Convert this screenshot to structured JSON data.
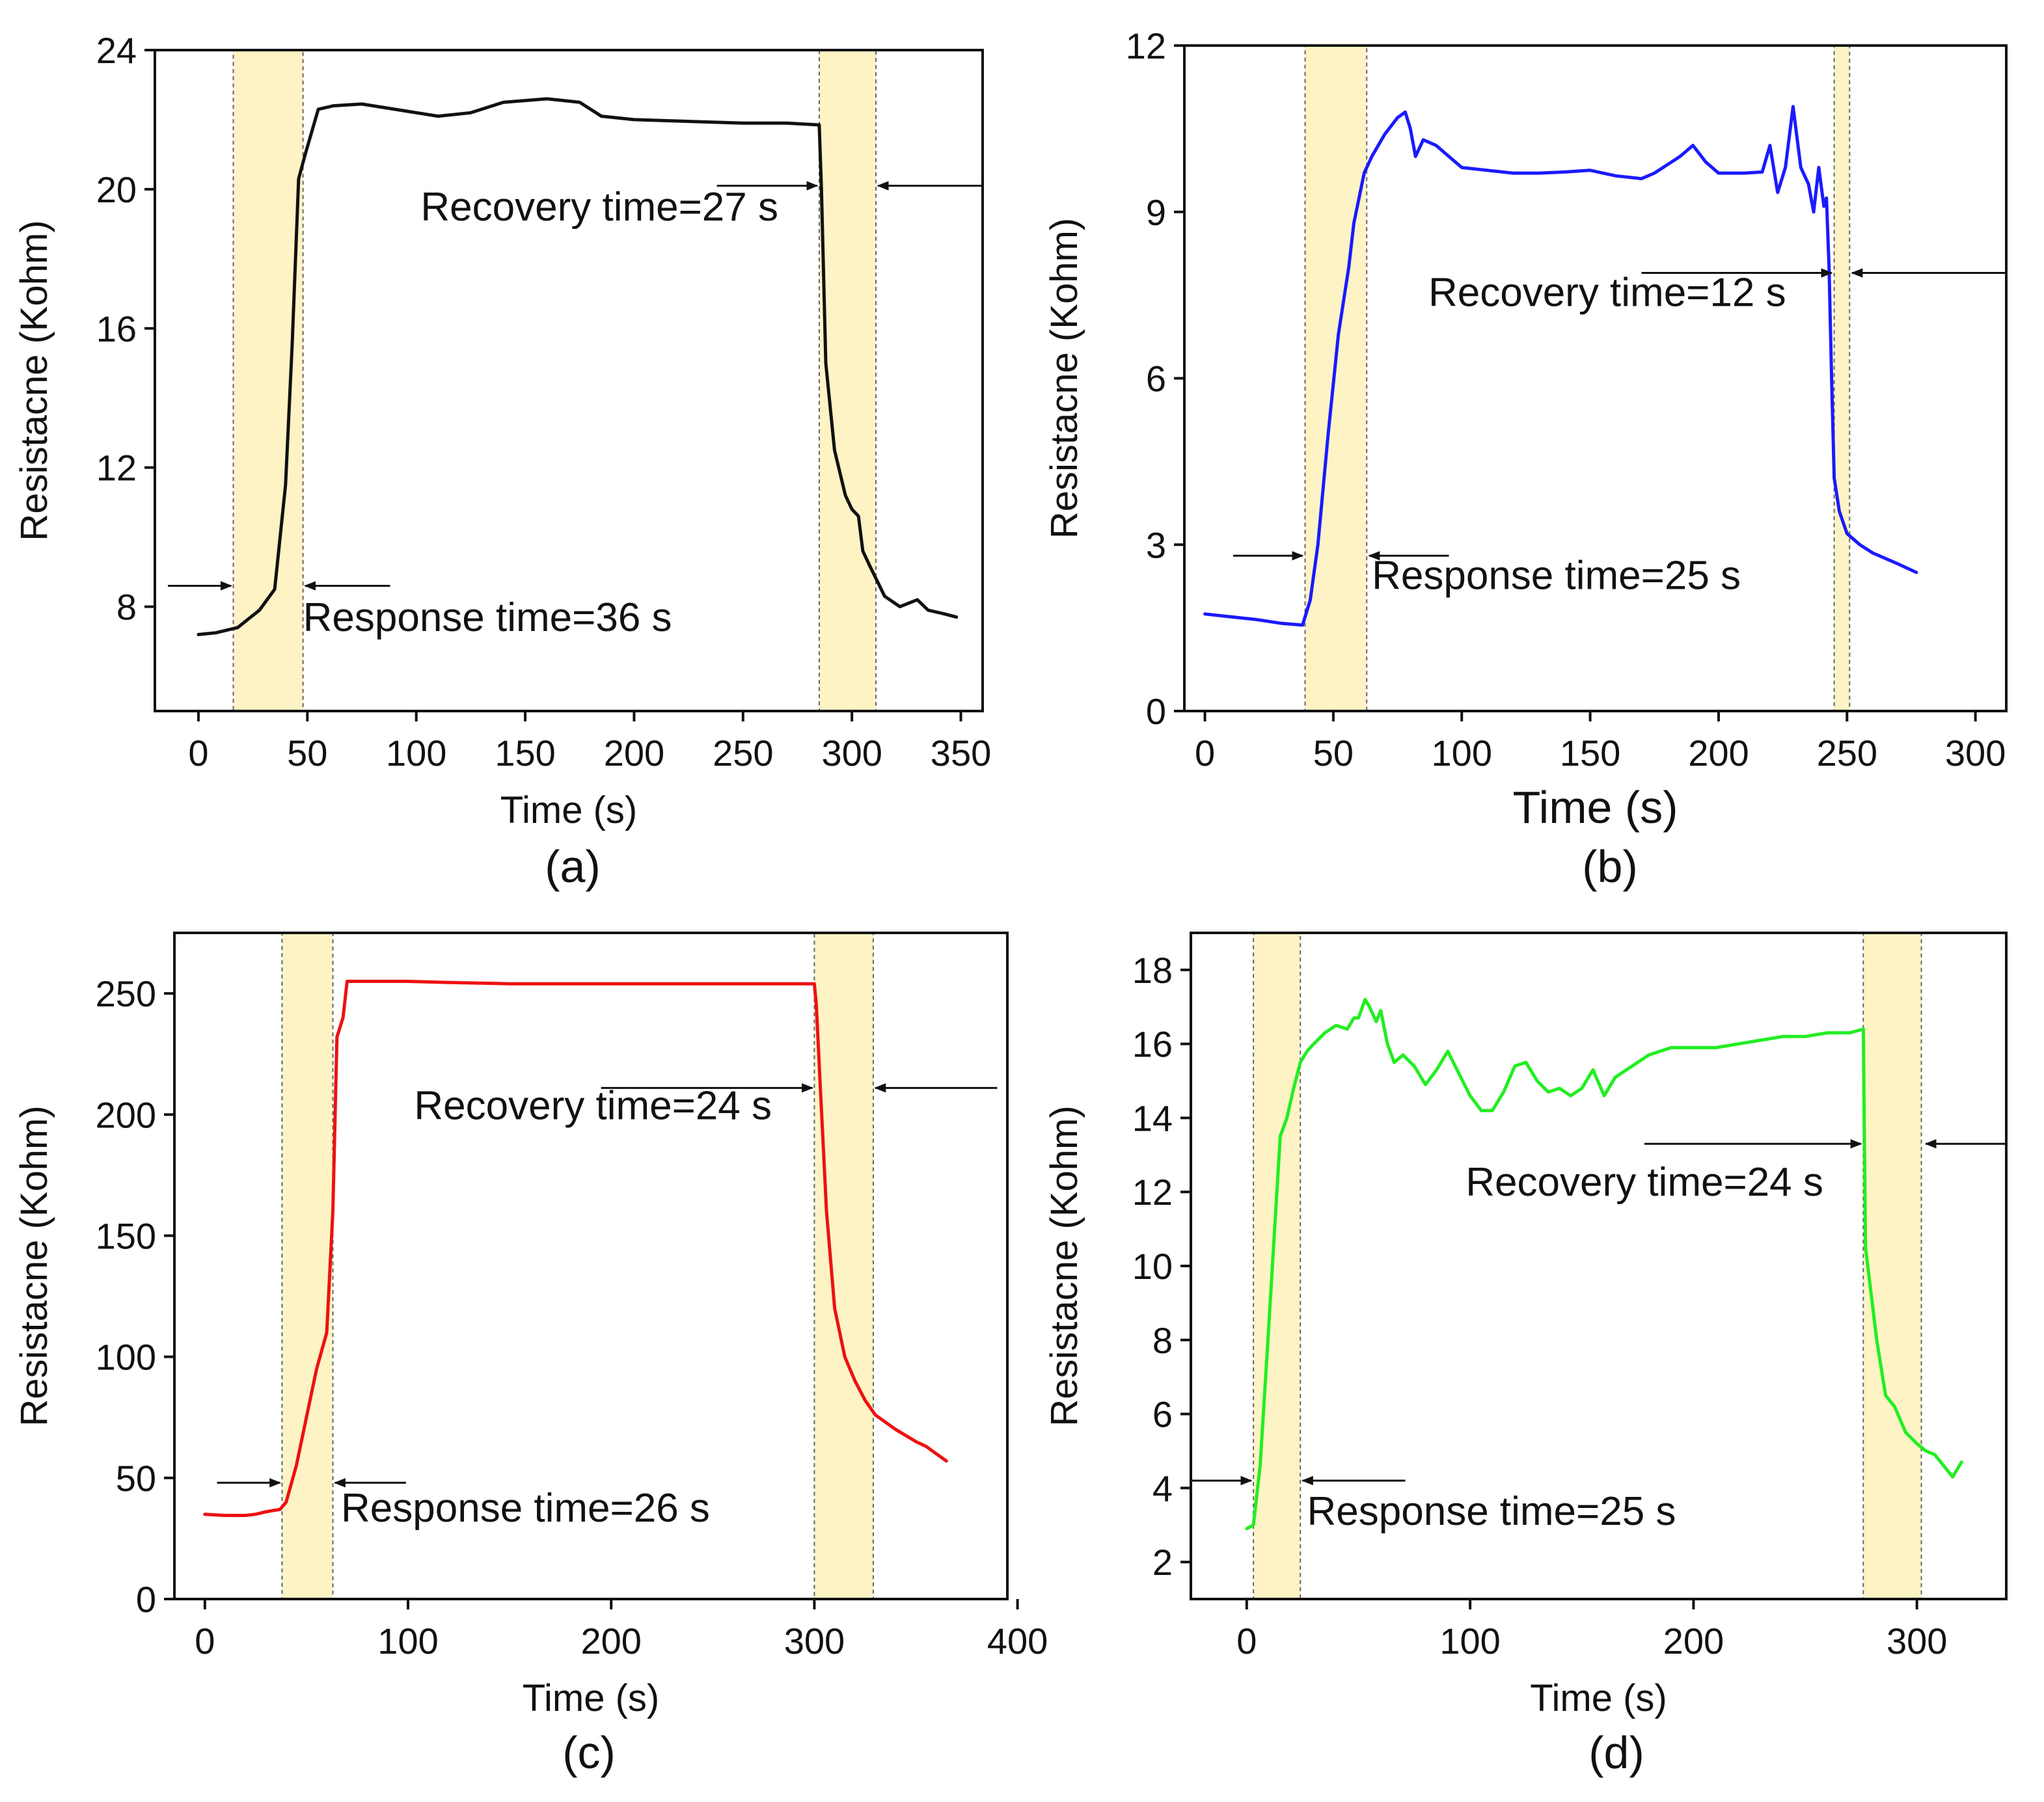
{
  "chart_data": [
    {
      "type": "line",
      "panel_label": "(a)",
      "xlabel": "Time (s)",
      "ylabel": "Resistacne (Kohm)",
      "xlim": [
        -20,
        360
      ],
      "ylim": [
        5,
        24
      ],
      "xticks": [
        0,
        50,
        100,
        150,
        200,
        250,
        300,
        350
      ],
      "yticks": [
        8,
        12,
        16,
        20,
        24
      ],
      "color": "#111111",
      "series": [
        {
          "name": "a",
          "x": [
            0,
            8,
            18,
            28,
            35,
            40,
            43,
            46,
            49,
            55,
            62,
            75,
            90,
            110,
            125,
            140,
            160,
            175,
            185,
            200,
            250,
            270,
            285,
            286,
            288,
            292,
            297,
            300,
            303,
            305,
            308,
            315,
            322,
            330,
            335,
            342,
            348
          ],
          "y": [
            7.2,
            7.25,
            7.4,
            7.9,
            8.5,
            11.5,
            15.5,
            20.3,
            21.0,
            22.3,
            22.4,
            22.45,
            22.3,
            22.1,
            22.2,
            22.5,
            22.6,
            22.5,
            22.1,
            22.0,
            21.9,
            21.9,
            21.85,
            20.0,
            15.0,
            12.5,
            11.2,
            10.8,
            10.6,
            9.6,
            9.2,
            8.3,
            8.0,
            8.2,
            7.9,
            7.8,
            7.7
          ]
        }
      ],
      "shaded_regions": [
        [
          16,
          48
        ],
        [
          285,
          311
        ]
      ],
      "annotations": [
        {
          "text": "Response time=36 s",
          "x": 48,
          "y": 7.3,
          "arrows": [
            {
              "from_x": -14,
              "to_x": 15,
              "y": 8.6
            },
            {
              "from_x": 88,
              "to_x": 49,
              "y": 8.6
            }
          ]
        },
        {
          "text": "Recovery time=27 s",
          "x": 102,
          "y": 19.1,
          "arrows": [
            {
              "from_x": 238,
              "to_x": 284,
              "y": 20.1
            },
            {
              "from_x": 360,
              "to_x": 312,
              "y": 20.1
            }
          ]
        }
      ]
    },
    {
      "type": "line",
      "panel_label": "(b)",
      "xlabel": "Time (s)",
      "ylabel": "Resistacne (Kohm)",
      "xlim": [
        -8,
        312
      ],
      "ylim": [
        0,
        12
      ],
      "xticks": [
        0,
        50,
        100,
        150,
        200,
        250,
        300
      ],
      "yticks": [
        0,
        3,
        6,
        9,
        12
      ],
      "color": "#1a1aff",
      "series": [
        {
          "name": "b",
          "x": [
            0,
            10,
            20,
            30,
            38,
            41,
            44,
            48,
            52,
            56,
            58,
            62,
            65,
            70,
            75,
            78,
            80,
            82,
            85,
            90,
            95,
            100,
            110,
            120,
            130,
            140,
            150,
            160,
            170,
            175,
            180,
            185,
            190,
            195,
            200,
            210,
            217,
            220,
            223,
            226,
            229,
            232,
            235,
            237,
            239,
            241,
            242,
            243,
            244,
            245,
            247,
            250,
            255,
            260,
            270,
            277
          ],
          "y": [
            1.75,
            1.7,
            1.65,
            1.58,
            1.55,
            2.0,
            3.0,
            5.0,
            6.8,
            8.0,
            8.8,
            9.7,
            10.0,
            10.4,
            10.7,
            10.8,
            10.5,
            10.0,
            10.3,
            10.2,
            10.0,
            9.8,
            9.75,
            9.7,
            9.7,
            9.72,
            9.75,
            9.65,
            9.6,
            9.7,
            9.85,
            10.0,
            10.2,
            9.9,
            9.7,
            9.7,
            9.72,
            10.2,
            9.35,
            9.8,
            10.9,
            9.8,
            9.5,
            9.0,
            9.8,
            9.1,
            9.25,
            8.0,
            6.0,
            4.2,
            3.6,
            3.2,
            3.0,
            2.85,
            2.65,
            2.5
          ]
        }
      ],
      "shaded_regions": [
        [
          39,
          63
        ],
        [
          245,
          251
        ]
      ],
      "annotations": [
        {
          "text": "Response time=25 s",
          "x": 65,
          "y": 2.2,
          "arrows": [
            {
              "from_x": 11,
              "to_x": 38,
              "y": 2.8
            },
            {
              "from_x": 95,
              "to_x": 64,
              "y": 2.8
            }
          ]
        },
        {
          "text": "Recovery time=12 s",
          "x": 87,
          "y": 7.3,
          "arrows": [
            {
              "from_x": 170,
              "to_x": 244,
              "y": 7.9
            },
            {
              "from_x": 312,
              "to_x": 252,
              "y": 7.9
            }
          ]
        }
      ]
    },
    {
      "type": "line",
      "panel_label": "(c)",
      "xlabel": "Time (s)",
      "ylabel": "Resistacne (Kohm)",
      "xlim": [
        -15,
        395
      ],
      "ylim": [
        0,
        275
      ],
      "xticks": [
        0,
        100,
        200,
        300,
        400
      ],
      "yticks": [
        0,
        50,
        100,
        150,
        200,
        250
      ],
      "color": "#ee1111",
      "series": [
        {
          "name": "c",
          "x": [
            0,
            10,
            20,
            25,
            30,
            37,
            40,
            45,
            50,
            55,
            60,
            63,
            65,
            68,
            70,
            80,
            100,
            120,
            150,
            200,
            250,
            280,
            300,
            301,
            303,
            306,
            310,
            315,
            320,
            325,
            330,
            340,
            350,
            355,
            360,
            365
          ],
          "y": [
            35,
            34.5,
            34.5,
            35,
            36,
            37,
            40,
            55,
            75,
            95,
            110,
            160,
            232,
            240,
            255,
            255,
            255,
            254.5,
            254,
            254,
            254,
            254,
            254,
            245,
            210,
            160,
            120,
            100,
            90,
            82,
            76,
            70,
            65,
            63,
            60,
            57
          ]
        }
      ],
      "shaded_regions": [
        [
          38,
          63
        ],
        [
          300,
          329
        ]
      ],
      "annotations": [
        {
          "text": "Response time=26 s",
          "x": 67,
          "y": 32,
          "arrows": [
            {
              "from_x": 6,
              "to_x": 37,
              "y": 48
            },
            {
              "from_x": 99,
              "to_x": 64,
              "y": 48
            }
          ]
        },
        {
          "text": "Recovery time=24 s",
          "x": 103,
          "y": 198,
          "arrows": [
            {
              "from_x": 195,
              "to_x": 299,
              "y": 211
            },
            {
              "from_x": 390,
              "to_x": 330,
              "y": 211
            }
          ]
        }
      ]
    },
    {
      "type": "line",
      "panel_label": "(d)",
      "xlabel": "Time (s)",
      "ylabel": "Resistacne (Kohm)",
      "xlim": [
        -25,
        340
      ],
      "ylim": [
        1,
        19
      ],
      "xticks": [
        0,
        100,
        200,
        300
      ],
      "yticks": [
        2,
        4,
        6,
        8,
        10,
        12,
        14,
        16,
        18
      ],
      "color": "#22ee22",
      "series": [
        {
          "name": "d",
          "x": [
            0,
            3,
            6,
            9,
            12,
            15,
            18,
            21,
            24,
            27,
            30,
            35,
            40,
            45,
            48,
            50,
            53,
            55,
            58,
            60,
            63,
            66,
            70,
            75,
            80,
            85,
            90,
            95,
            100,
            105,
            110,
            115,
            120,
            125,
            130,
            135,
            140,
            145,
            150,
            155,
            160,
            165,
            170,
            180,
            190,
            200,
            210,
            220,
            230,
            240,
            250,
            260,
            270,
            276,
            277,
            279,
            282,
            286,
            290,
            295,
            300,
            304,
            308,
            312,
            316,
            320
          ],
          "y": [
            2.9,
            3.0,
            4.6,
            7.5,
            10.5,
            13.5,
            14.0,
            14.8,
            15.5,
            15.8,
            16.0,
            16.3,
            16.5,
            16.4,
            16.7,
            16.7,
            17.2,
            17.0,
            16.6,
            16.9,
            16.0,
            15.5,
            15.7,
            15.4,
            14.9,
            15.3,
            15.8,
            15.2,
            14.6,
            14.2,
            14.2,
            14.7,
            15.4,
            15.5,
            15.0,
            14.7,
            14.8,
            14.6,
            14.8,
            15.3,
            14.6,
            15.1,
            15.3,
            15.7,
            15.9,
            15.9,
            15.9,
            16.0,
            16.1,
            16.2,
            16.2,
            16.3,
            16.3,
            16.4,
            10.5,
            9.5,
            8.0,
            6.5,
            6.2,
            5.5,
            5.2,
            5.0,
            4.9,
            4.6,
            4.3,
            4.7
          ]
        }
      ],
      "shaded_regions": [
        [
          3,
          24
        ],
        [
          276,
          302
        ]
      ],
      "annotations": [
        {
          "text": "Response time=25 s",
          "x": 27,
          "y": 3.0,
          "arrows": [
            {
              "from_x": -25,
              "to_x": 2,
              "y": 4.2
            },
            {
              "from_x": 71,
              "to_x": 25,
              "y": 4.2
            }
          ]
        },
        {
          "text": "Recovery time=24 s",
          "x": 98,
          "y": 11.9,
          "arrows": [
            {
              "from_x": 178,
              "to_x": 275,
              "y": 13.3
            },
            {
              "from_x": 340,
              "to_x": 304,
              "y": 13.3
            }
          ]
        }
      ]
    }
  ]
}
